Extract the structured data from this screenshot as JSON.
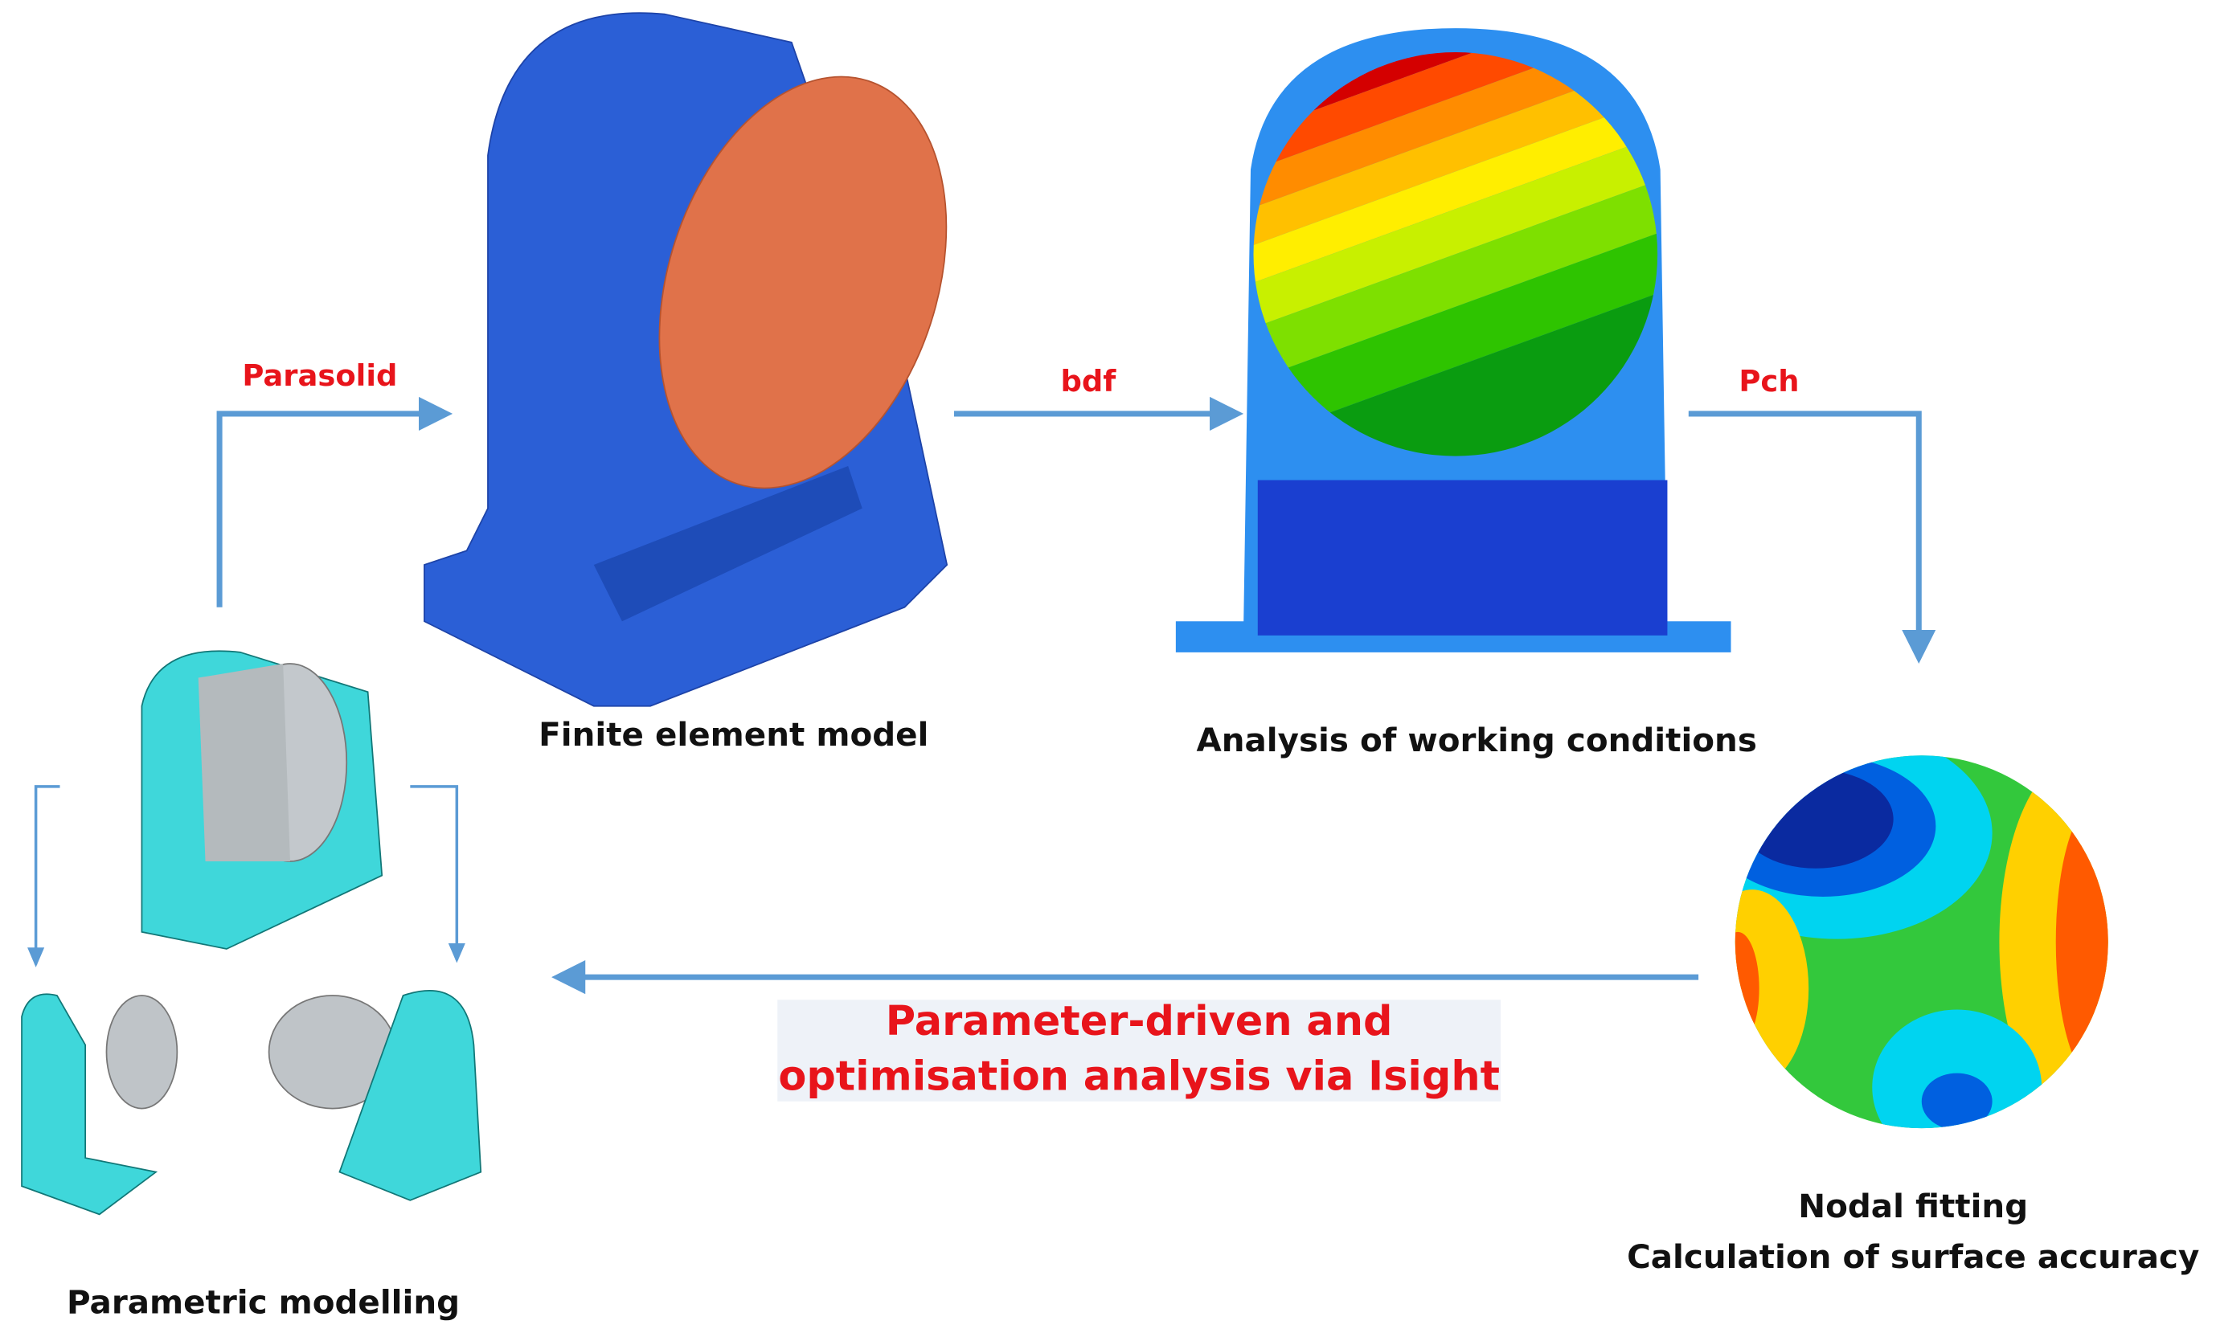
{
  "nodes": [
    {
      "label": "Parametric modelling"
    },
    {
      "label": "Finite element model"
    },
    {
      "label": "Analysis of working conditions"
    },
    {
      "label": [
        "Nodal fitting",
        "Calculation of surface accuracy"
      ]
    }
  ],
  "edges": [
    {
      "label": "Parasolid"
    },
    {
      "label": "bdf"
    },
    {
      "label": "Pch"
    },
    {
      "label": [
        "Parameter-driven and",
        "optimisation analysis via Isight"
      ]
    }
  ]
}
